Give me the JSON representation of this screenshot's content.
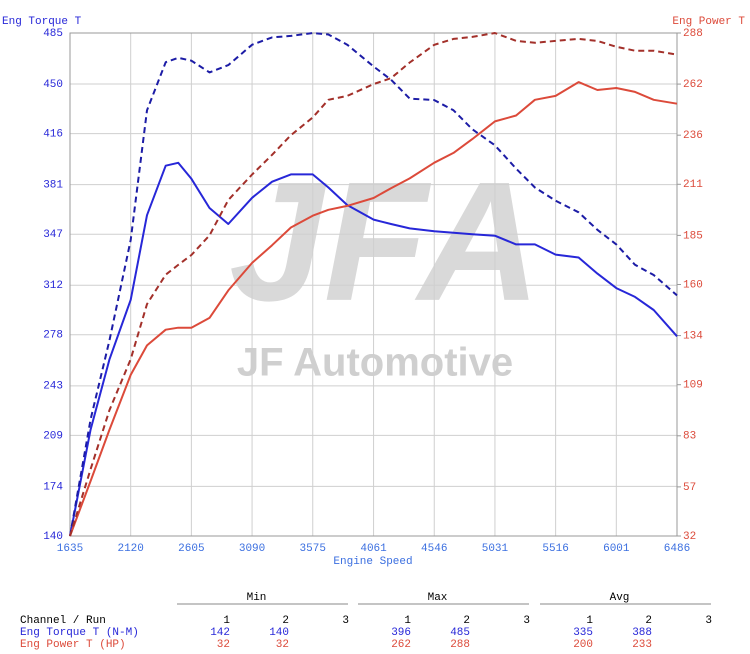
{
  "chart_data": {
    "type": "line",
    "y_label": "Eng Torque T",
    "y2_label": "Eng Power T",
    "x_label": "Engine Speed",
    "watermark": {
      "logo": "JFA",
      "text": "JF Automotive"
    },
    "x": [
      1635,
      1800,
      1950,
      2120,
      2250,
      2400,
      2500,
      2605,
      2750,
      2900,
      3090,
      3250,
      3400,
      3575,
      3700,
      3850,
      4061,
      4200,
      4350,
      4546,
      4700,
      4850,
      5031,
      5200,
      5350,
      5516,
      5700,
      5850,
      6001,
      6150,
      6300,
      6486
    ],
    "xlim": [
      1635,
      6486
    ],
    "xticks": [
      1635,
      2120,
      2605,
      3090,
      3575,
      4061,
      4546,
      5031,
      5516,
      6001,
      6486
    ],
    "ylim": [
      140,
      485
    ],
    "yticks": [
      140,
      174,
      209,
      243,
      278,
      312,
      347,
      381,
      416,
      450,
      485
    ],
    "y2lim": [
      32,
      288
    ],
    "y2ticks": [
      32,
      57,
      83,
      109,
      134,
      160,
      185,
      211,
      236,
      262,
      288
    ],
    "grid": true,
    "series": [
      {
        "color": "#2727d8",
        "style": "solid",
        "axis": "y",
        "values": [
          140,
          213,
          261,
          302,
          360,
          394,
          396,
          385,
          365,
          354,
          372,
          383,
          388,
          388,
          379,
          367,
          357,
          354,
          351,
          349,
          348,
          347,
          346,
          340,
          340,
          333,
          331,
          320,
          310,
          304,
          295,
          277
        ]
      },
      {
        "color": "#1c1ca6",
        "style": "dashed",
        "axis": "y",
        "values": [
          140,
          220,
          274,
          343,
          432,
          465,
          468,
          466,
          458,
          463,
          477,
          482,
          483,
          485,
          484,
          477,
          462,
          453,
          440,
          439,
          432,
          419,
          408,
          392,
          379,
          370,
          362,
          350,
          340,
          326,
          319,
          305
        ]
      },
      {
        "color": "#dc4a3a",
        "style": "solid",
        "axis": "y2",
        "values": [
          32,
          60,
          86,
          114,
          129,
          137,
          138,
          138,
          143,
          157,
          171,
          180,
          189,
          195,
          198,
          200,
          204,
          209,
          214,
          222,
          227,
          234,
          243,
          246,
          254,
          256,
          263,
          259,
          260,
          258,
          254,
          252
        ]
      },
      {
        "color": "#a3302a",
        "style": "dashed",
        "axis": "y2",
        "values": [
          32,
          66,
          96,
          122,
          150,
          165,
          170,
          175,
          185,
          203,
          216,
          226,
          236,
          245,
          254,
          256,
          262,
          265,
          273,
          282,
          285,
          286,
          288,
          284,
          283,
          284,
          285,
          284,
          281,
          279,
          279,
          277
        ]
      }
    ]
  },
  "table": {
    "header": "Channel / Run",
    "groups": [
      {
        "label": "Min",
        "runs": [
          1,
          2,
          3
        ]
      },
      {
        "label": "Max",
        "runs": [
          1,
          2,
          3
        ]
      },
      {
        "label": "Avg",
        "runs": [
          1,
          2,
          3
        ]
      }
    ],
    "rows": [
      {
        "channel": "Eng Torque T (N-M)",
        "color": "#2727d8",
        "cells": [
          [
            142,
            140
          ],
          [
            396,
            485
          ],
          [
            335,
            388
          ]
        ]
      },
      {
        "channel": "Eng Power T (HP)",
        "color": "#dc4a3a",
        "cells": [
          [
            32,
            32
          ],
          [
            262,
            288
          ],
          [
            200,
            233
          ]
        ]
      }
    ]
  }
}
